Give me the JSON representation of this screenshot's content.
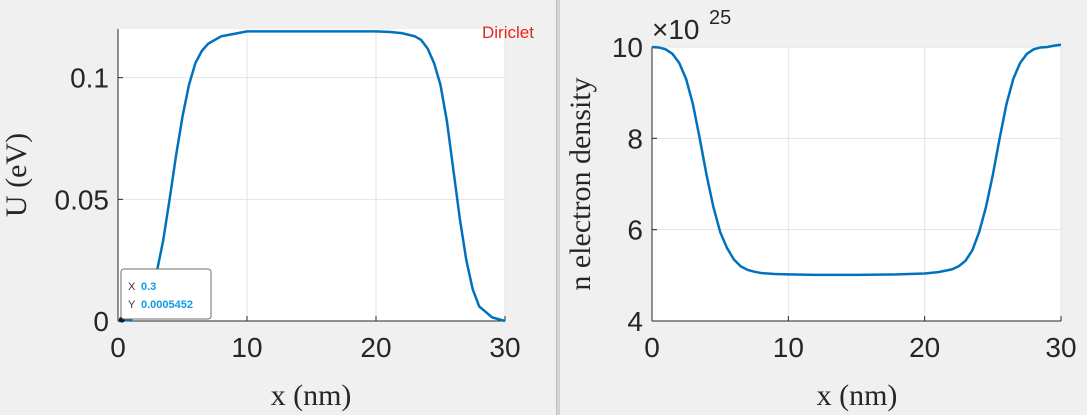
{
  "chart_data": [
    {
      "type": "line",
      "title": "",
      "xlabel": "x (nm)",
      "ylabel": "U (eV)",
      "xlim": [
        0,
        30
      ],
      "ylim": [
        0,
        0.12
      ],
      "xticks": [
        "0",
        "10",
        "20",
        "30"
      ],
      "yticks": [
        "0",
        "0.05",
        "0.1"
      ],
      "grid": true,
      "annotation": "Diriclet",
      "line_color": "#0072bd",
      "series": [
        {
          "x": [
            0,
            1,
            2,
            3,
            3.5,
            4,
            4.5,
            5,
            5.5,
            6,
            6.5,
            7,
            8,
            9,
            10,
            12,
            15,
            18,
            20,
            21,
            22,
            23,
            23.5,
            24,
            24.5,
            25,
            25.5,
            26,
            26.5,
            27,
            27.5,
            28,
            29,
            30
          ],
          "values": [
            0,
            0.0005,
            0.006,
            0.02,
            0.033,
            0.05,
            0.068,
            0.084,
            0.097,
            0.106,
            0.111,
            0.114,
            0.117,
            0.118,
            0.119,
            0.119,
            0.119,
            0.119,
            0.119,
            0.1188,
            0.1183,
            0.117,
            0.1155,
            0.112,
            0.106,
            0.097,
            0.082,
            0.062,
            0.042,
            0.025,
            0.013,
            0.006,
            0.0015,
            0
          ]
        }
      ],
      "datatip": {
        "x_key": "X",
        "x_value": "0.3",
        "y_key": "Y",
        "y_value": "0.0005452"
      }
    },
    {
      "type": "line",
      "title": "",
      "xlabel": "x (nm)",
      "ylabel": "n electron density",
      "xlim": [
        0,
        30
      ],
      "ylim": [
        4,
        10
      ],
      "xticks": [
        "0",
        "10",
        "20",
        "30"
      ],
      "yticks": [
        "4",
        "6",
        "8",
        "10"
      ],
      "exponent_base": "×10",
      "exponent_power": "25",
      "grid": true,
      "line_color": "#0072bd",
      "series": [
        {
          "x": [
            0,
            0.5,
            1,
            1.5,
            2,
            2.5,
            3,
            3.5,
            4,
            4.5,
            5,
            5.5,
            6,
            6.5,
            7,
            7.5,
            8,
            9,
            10,
            12,
            15,
            18,
            20,
            21,
            22,
            22.5,
            23,
            23.5,
            24,
            24.5,
            25,
            25.5,
            26,
            26.5,
            27,
            27.5,
            28,
            28.5,
            29,
            29.5,
            30
          ],
          "values": [
            10,
            9.99,
            9.95,
            9.85,
            9.65,
            9.3,
            8.75,
            8,
            7.2,
            6.5,
            5.95,
            5.6,
            5.35,
            5.2,
            5.12,
            5.08,
            5.05,
            5.03,
            5.02,
            5.01,
            5.01,
            5.02,
            5.04,
            5.07,
            5.13,
            5.2,
            5.32,
            5.55,
            5.95,
            6.5,
            7.2,
            8,
            8.75,
            9.3,
            9.65,
            9.85,
            9.95,
            9.99,
            10.0,
            10.03,
            10.05
          ]
        }
      ]
    }
  ]
}
